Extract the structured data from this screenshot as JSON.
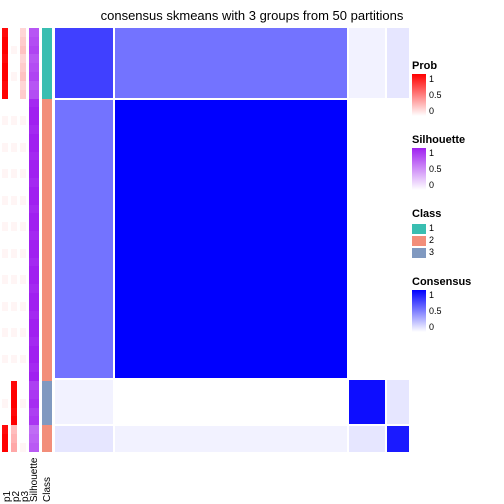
{
  "title": "consensus skmeans with 3 groups from 50 partitions",
  "title_fontsize": 13,
  "background_color": "#ffffff",
  "n_samples": 48,
  "group_sizes": [
    8,
    32,
    5,
    3
  ],
  "annotation_columns": [
    {
      "name": "p1",
      "width": 6
    },
    {
      "name": "p2",
      "width": 6
    },
    {
      "name": "p3",
      "width": 6
    },
    {
      "name": "Silhouette",
      "width": 10
    },
    {
      "name": "Class",
      "width": 10
    }
  ],
  "annotation_data": {
    "p1": {
      "type": "prob",
      "values_by_group": [
        1.0,
        0.0,
        0.0,
        1.0
      ]
    },
    "p2": {
      "type": "prob",
      "values_by_group": [
        0.0,
        0.0,
        1.0,
        0.3
      ]
    },
    "p3": {
      "type": "prob",
      "values_by_group": [
        0.2,
        0.0,
        0.0,
        0.0
      ]
    },
    "Silhouette": {
      "type": "silhouette",
      "values_by_group": [
        0.8,
        1.0,
        0.9,
        0.7
      ]
    },
    "Class": {
      "type": "class",
      "values_by_group": [
        1,
        2,
        3,
        2
      ],
      "colors": [
        "#39beb1",
        "#f28e7a",
        "#8099c0"
      ]
    }
  },
  "consensus_blocks": [
    {
      "groups": [
        0,
        0
      ],
      "value": 0.75
    },
    {
      "groups": [
        0,
        1
      ],
      "value": 0.55
    },
    {
      "groups": [
        0,
        2
      ],
      "value": 0.05
    },
    {
      "groups": [
        0,
        3
      ],
      "value": 0.1
    },
    {
      "groups": [
        1,
        0
      ],
      "value": 0.55
    },
    {
      "groups": [
        1,
        1
      ],
      "value": 1.0
    },
    {
      "groups": [
        1,
        2
      ],
      "value": 0.0
    },
    {
      "groups": [
        1,
        3
      ],
      "value": 0.0
    },
    {
      "groups": [
        2,
        0
      ],
      "value": 0.05
    },
    {
      "groups": [
        2,
        1
      ],
      "value": 0.0
    },
    {
      "groups": [
        2,
        2
      ],
      "value": 0.95
    },
    {
      "groups": [
        2,
        3
      ],
      "value": 0.1
    },
    {
      "groups": [
        3,
        0
      ],
      "value": 0.1
    },
    {
      "groups": [
        3,
        1
      ],
      "value": 0.05
    },
    {
      "groups": [
        3,
        2
      ],
      "value": 0.1
    },
    {
      "groups": [
        3,
        3
      ],
      "value": 0.9
    }
  ],
  "colormaps": {
    "prob": {
      "low": "#ffffff",
      "high": "#ff0000",
      "min": 0,
      "max": 1
    },
    "silhouette": {
      "low": "#ffffff",
      "high": "#a020f0",
      "min": 0,
      "max": 1
    },
    "consensus": {
      "low": "#ffffff",
      "high": "#0000ff",
      "min": 0,
      "max": 1
    }
  },
  "legends": [
    {
      "title": "Prob",
      "type": "gradient",
      "colormap": "prob",
      "ticks": [
        "1",
        "0.5",
        "0"
      ]
    },
    {
      "title": "Silhouette",
      "type": "gradient",
      "colormap": "silhouette",
      "ticks": [
        "1",
        "0.5",
        "0"
      ]
    },
    {
      "title": "Class",
      "type": "discrete",
      "items": [
        {
          "label": "1",
          "color": "#39beb1"
        },
        {
          "label": "2",
          "color": "#f28e7a"
        },
        {
          "label": "3",
          "color": "#8099c0"
        }
      ]
    },
    {
      "title": "Consensus",
      "type": "gradient",
      "colormap": "consensus",
      "ticks": [
        "1",
        "0.5",
        "0"
      ]
    }
  ]
}
